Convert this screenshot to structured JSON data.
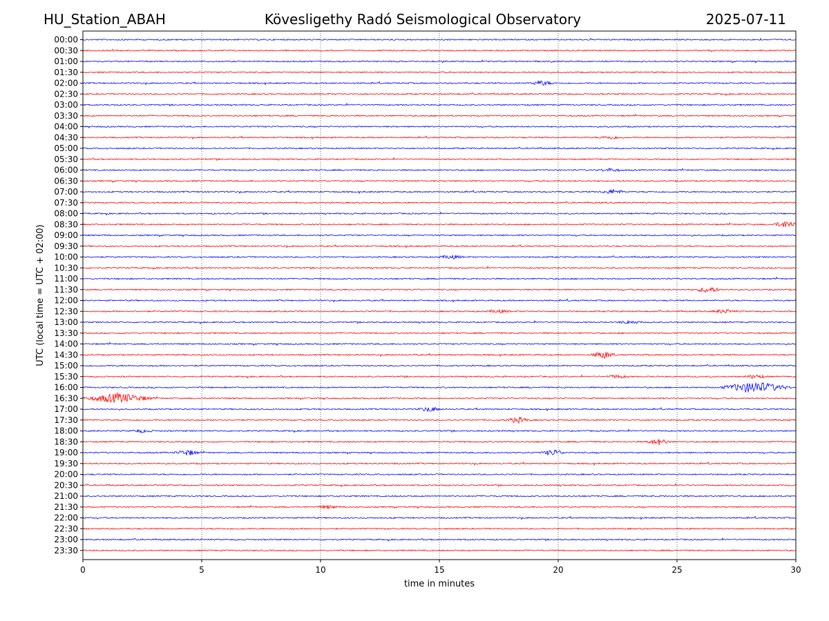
{
  "header": {
    "station": "HU_Station_ABAH",
    "observatory": "Kövesligethy Radó Seismological Observatory",
    "date": "2025-07-11"
  },
  "chart_data": {
    "type": "line",
    "title": "Kövesligethy Radó Seismological Observatory",
    "xlabel": "time in minutes",
    "ylabel": "UTC (local time = UTC + 02:00)",
    "xlim": [
      0,
      30
    ],
    "xticks": [
      "0",
      "5",
      "10",
      "15",
      "20",
      "25",
      "30"
    ],
    "xtick_values": [
      0,
      5,
      10,
      15,
      20,
      25,
      30
    ],
    "grid": "vertical dotted at 5-minute ticks",
    "colors": {
      "even_rows": "#0000ff",
      "odd_rows": "#ff0000",
      "grid": "#000000"
    },
    "rows": [
      "00:00",
      "00:30",
      "01:00",
      "01:30",
      "02:00",
      "02:30",
      "03:00",
      "03:30",
      "04:00",
      "04:30",
      "05:00",
      "05:30",
      "06:00",
      "06:30",
      "07:00",
      "07:30",
      "08:00",
      "08:30",
      "09:00",
      "09:30",
      "10:00",
      "10:30",
      "11:00",
      "11:30",
      "12:00",
      "12:30",
      "13:00",
      "13:30",
      "14:00",
      "14:30",
      "15:00",
      "15:30",
      "16:00",
      "16:30",
      "17:00",
      "17:30",
      "18:00",
      "18:30",
      "19:00",
      "19:30",
      "20:00",
      "20:30",
      "21:00",
      "21:30",
      "22:00",
      "22:30",
      "23:00",
      "23:30"
    ],
    "bursts": [
      {
        "row": "02:00",
        "t": 19.3,
        "amp": 3
      },
      {
        "row": "04:30",
        "t": 22.2,
        "amp": 2
      },
      {
        "row": "06:00",
        "t": 22.2,
        "amp": 2
      },
      {
        "row": "07:00",
        "t": 22.3,
        "amp": 3
      },
      {
        "row": "08:30",
        "t": 29.6,
        "amp": 5
      },
      {
        "row": "10:00",
        "t": 15.5,
        "amp": 2.5
      },
      {
        "row": "11:30",
        "t": 26.3,
        "amp": 4
      },
      {
        "row": "12:30",
        "t": 17.5,
        "amp": 2
      },
      {
        "row": "12:30",
        "t": 27.0,
        "amp": 2.5
      },
      {
        "row": "13:00",
        "t": 23.0,
        "amp": 2
      },
      {
        "row": "14:30",
        "t": 21.9,
        "amp": 5
      },
      {
        "row": "15:30",
        "t": 22.5,
        "amp": 2
      },
      {
        "row": "15:30",
        "t": 28.3,
        "amp": 2.5
      },
      {
        "row": "16:00",
        "t": 28.3,
        "amp": 8
      },
      {
        "row": "16:30",
        "t": 1.5,
        "amp": 7
      },
      {
        "row": "17:00",
        "t": 14.6,
        "amp": 3
      },
      {
        "row": "17:30",
        "t": 18.3,
        "amp": 4
      },
      {
        "row": "18:00",
        "t": 2.5,
        "amp": 2
      },
      {
        "row": "18:30",
        "t": 24.2,
        "amp": 4
      },
      {
        "row": "19:00",
        "t": 4.4,
        "amp": 4
      },
      {
        "row": "19:00",
        "t": 19.8,
        "amp": 4
      },
      {
        "row": "21:30",
        "t": 10.3,
        "amp": 2
      }
    ]
  }
}
